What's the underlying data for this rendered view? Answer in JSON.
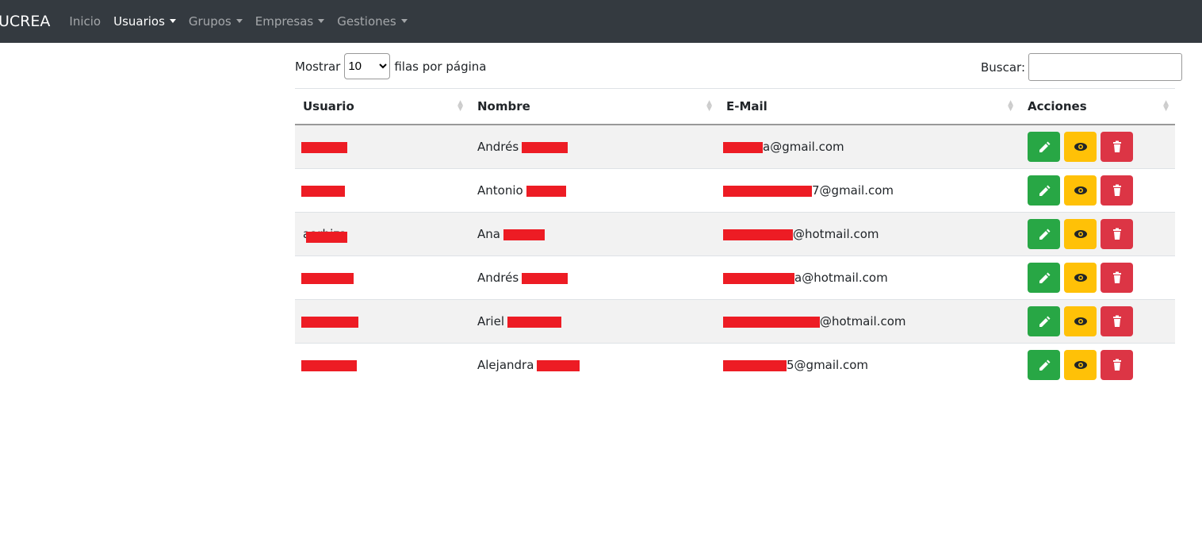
{
  "navbar": {
    "brand": "UCREA",
    "items": [
      "Inicio",
      "Usuarios",
      "Grupos",
      "Empresas",
      "Gestiones"
    ]
  },
  "controls": {
    "show_label": "Mostrar",
    "page_size": "10",
    "per_page_label": "filas por página",
    "search_label": "Buscar:"
  },
  "table": {
    "headers": [
      "Usuario",
      "Nombre",
      "E-Mail",
      "Acciones"
    ],
    "rows": [
      {
        "name": "Andrés",
        "email": "a@gmail.com"
      },
      {
        "name": "Antonio",
        "email": "7@gmail.com"
      },
      {
        "user": "aarbiza",
        "name": "Ana",
        "email": "@hotmail.com"
      },
      {
        "name": "Andrés",
        "email": "a@hotmail.com"
      },
      {
        "name": "Ariel",
        "email": "@hotmail.com"
      },
      {
        "name": "Alejandra",
        "email": "5@gmail.com"
      }
    ]
  }
}
